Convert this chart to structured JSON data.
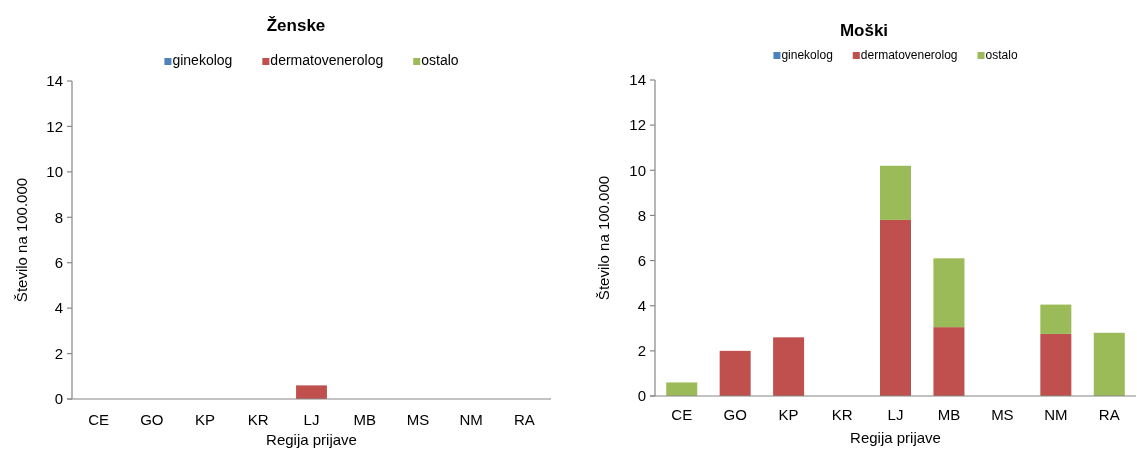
{
  "chart_data": [
    {
      "type": "bar",
      "stacked": true,
      "title": "Ženske",
      "xlabel": "Regija prijave",
      "ylabel": "Število na 100.000",
      "categories": [
        "CE",
        "GO",
        "KP",
        "KR",
        "LJ",
        "MB",
        "MS",
        "NM",
        "RA"
      ],
      "series": [
        {
          "name": "ginekolog",
          "color": "#4f81bd",
          "values": [
            0,
            0,
            0,
            0,
            0,
            0,
            0,
            0,
            0
          ]
        },
        {
          "name": "dermatovenerolog",
          "color": "#c0504d",
          "values": [
            0,
            0,
            0,
            0,
            0.6,
            0,
            0,
            0,
            0
          ]
        },
        {
          "name": "ostalo",
          "color": "#9bbb59",
          "values": [
            0,
            0,
            0,
            0,
            0,
            0,
            0,
            0,
            0
          ]
        }
      ],
      "ylim": [
        0,
        14
      ],
      "yticks": [
        0,
        2,
        4,
        6,
        8,
        10,
        12,
        14
      ],
      "legend": "top"
    },
    {
      "type": "bar",
      "stacked": true,
      "title": "Moški",
      "xlabel": "Regija prijave",
      "ylabel": "Število na 100.000",
      "categories": [
        "CE",
        "GO",
        "KP",
        "KR",
        "LJ",
        "MB",
        "MS",
        "NM",
        "RA"
      ],
      "series": [
        {
          "name": "ginekolog",
          "color": "#4f81bd",
          "values": [
            0,
            0,
            0,
            0,
            0,
            0,
            0,
            0,
            0
          ]
        },
        {
          "name": "dermatovenerolog",
          "color": "#c0504d",
          "values": [
            0,
            2.0,
            2.6,
            0,
            7.8,
            3.05,
            0,
            2.75,
            0
          ]
        },
        {
          "name": "ostalo",
          "color": "#9bbb59",
          "values": [
            0.6,
            0,
            0,
            0,
            2.4,
            3.05,
            0,
            1.3,
            2.8
          ]
        }
      ],
      "ylim": [
        0,
        14
      ],
      "yticks": [
        0,
        2,
        4,
        6,
        8,
        10,
        12,
        14
      ],
      "legend": "top"
    }
  ]
}
